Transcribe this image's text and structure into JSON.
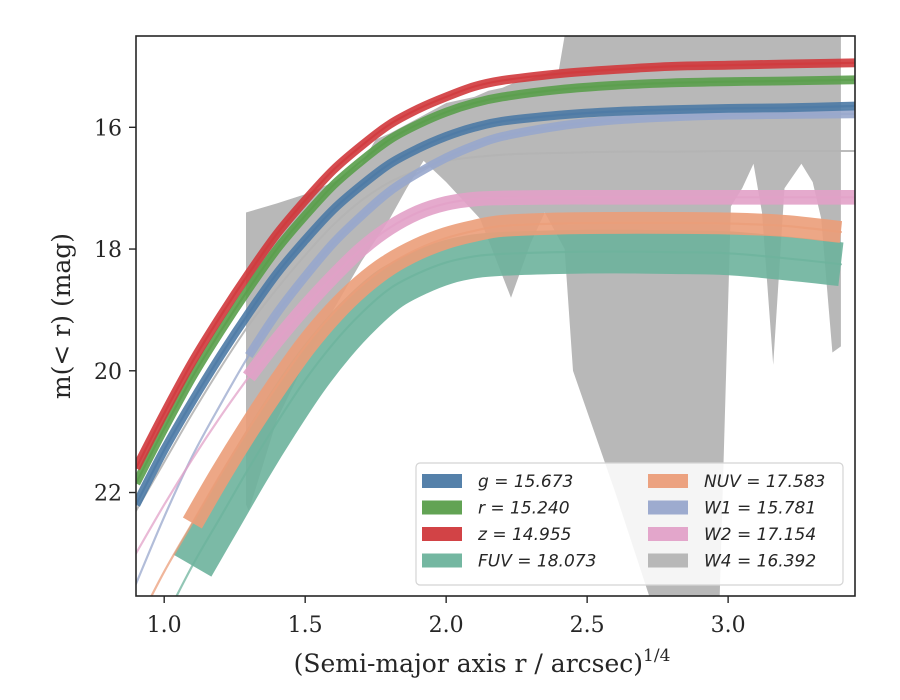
{
  "chart_data": {
    "type": "line",
    "xlabel": "(Semi-major axis r / arcsec)",
    "xlabel_exponent": "1/4",
    "ylabel": "m(< r) (mag)",
    "xlim": [
      0.9,
      3.45
    ],
    "ylim": [
      23.7,
      14.5
    ],
    "y_inverted": true,
    "x_ticks": [
      1.0,
      1.5,
      2.0,
      2.5,
      3.0
    ],
    "x_tick_labels": [
      "1.0",
      "1.5",
      "2.0",
      "2.5",
      "3.0"
    ],
    "y_ticks": [
      16,
      18,
      20,
      22
    ],
    "y_tick_labels": [
      "16",
      "18",
      "20",
      "22"
    ],
    "grid": false,
    "legend_position": "lower-right",
    "series": [
      {
        "band": "g",
        "legend": "g = 15.673",
        "color": "#4c7aa5",
        "band_width_mag": 0.06,
        "x": [
          0.9,
          1.0,
          1.1,
          1.2,
          1.3,
          1.4,
          1.5,
          1.6,
          1.7,
          1.8,
          1.9,
          2.0,
          2.1,
          2.2,
          2.4,
          2.6,
          2.8,
          3.0,
          3.2,
          3.45
        ],
        "y": [
          22.2,
          21.3,
          20.5,
          19.75,
          19.05,
          18.4,
          17.85,
          17.35,
          16.95,
          16.6,
          16.35,
          16.15,
          16.0,
          15.9,
          15.8,
          15.74,
          15.71,
          15.69,
          15.68,
          15.65
        ]
      },
      {
        "band": "r",
        "legend": "r = 15.240",
        "color": "#5a9e4b",
        "band_width_mag": 0.06,
        "x": [
          0.9,
          1.0,
          1.1,
          1.2,
          1.3,
          1.4,
          1.5,
          1.6,
          1.7,
          1.8,
          1.9,
          2.0,
          2.1,
          2.2,
          2.4,
          2.6,
          2.8,
          3.0,
          3.2,
          3.45
        ],
        "y": [
          21.85,
          20.95,
          20.1,
          19.35,
          18.65,
          18.0,
          17.45,
          16.95,
          16.55,
          16.2,
          15.95,
          15.75,
          15.6,
          15.5,
          15.38,
          15.31,
          15.27,
          15.25,
          15.24,
          15.22
        ]
      },
      {
        "band": "z",
        "legend": "z = 14.955",
        "color": "#d0393c",
        "band_width_mag": 0.06,
        "x": [
          0.9,
          1.0,
          1.1,
          1.2,
          1.3,
          1.4,
          1.5,
          1.6,
          1.7,
          1.8,
          1.9,
          2.0,
          2.1,
          2.2,
          2.4,
          2.6,
          2.8,
          3.0,
          3.2,
          3.45
        ],
        "y": [
          21.6,
          20.7,
          19.85,
          19.1,
          18.4,
          17.75,
          17.2,
          16.7,
          16.3,
          15.95,
          15.7,
          15.5,
          15.33,
          15.23,
          15.12,
          15.05,
          15.0,
          14.98,
          14.96,
          14.94
        ]
      },
      {
        "band": "FUV",
        "legend": "FUV = 18.073",
        "color": "#6db39c",
        "band_width_mag": 0.3,
        "x": [
          0.9,
          1.0,
          1.1,
          1.2,
          1.3,
          1.4,
          1.5,
          1.6,
          1.7,
          1.8,
          1.9,
          2.0,
          2.1,
          2.2,
          2.4,
          2.6,
          2.8,
          3.0,
          3.2,
          3.4
        ],
        "y": [
          25.0,
          24.1,
          23.2,
          22.4,
          21.6,
          20.85,
          20.15,
          19.55,
          19.05,
          18.65,
          18.4,
          18.22,
          18.12,
          18.08,
          18.05,
          18.04,
          18.05,
          18.07,
          18.15,
          18.25
        ]
      },
      {
        "band": "NUV",
        "legend": "NUV = 17.583",
        "color": "#eb9d79",
        "band_width_mag": 0.15,
        "x": [
          0.9,
          1.0,
          1.1,
          1.2,
          1.3,
          1.4,
          1.5,
          1.6,
          1.7,
          1.8,
          1.9,
          2.0,
          2.1,
          2.2,
          2.4,
          2.6,
          2.8,
          3.0,
          3.2,
          3.4
        ],
        "y": [
          24.2,
          23.3,
          22.5,
          21.7,
          20.95,
          20.25,
          19.6,
          19.05,
          18.6,
          18.25,
          18.0,
          17.82,
          17.7,
          17.62,
          17.58,
          17.57,
          17.57,
          17.58,
          17.62,
          17.72
        ]
      },
      {
        "band": "W1",
        "legend": "W1 = 15.781",
        "color": "#98a7cc",
        "band_width_mag": 0.06,
        "x": [
          0.9,
          1.0,
          1.1,
          1.2,
          1.3,
          1.4,
          1.5,
          1.6,
          1.7,
          1.8,
          1.9,
          2.0,
          2.1,
          2.2,
          2.4,
          2.6,
          2.8,
          3.0,
          3.2,
          3.45
        ],
        "y": [
          23.5,
          22.4,
          21.4,
          20.55,
          19.75,
          19.05,
          18.45,
          17.9,
          17.45,
          17.05,
          16.75,
          16.5,
          16.3,
          16.15,
          15.98,
          15.88,
          15.83,
          15.8,
          15.79,
          15.78
        ]
      },
      {
        "band": "W2",
        "legend": "W2 = 17.154",
        "color": "#e2a1c8",
        "band_width_mag": 0.1,
        "x": [
          0.9,
          1.0,
          1.1,
          1.2,
          1.3,
          1.4,
          1.5,
          1.6,
          1.7,
          1.8,
          1.9,
          2.0,
          2.1,
          2.2,
          2.4,
          2.6,
          2.8,
          3.0,
          3.2,
          3.45
        ],
        "y": [
          23.0,
          22.2,
          21.45,
          20.75,
          20.1,
          19.5,
          18.95,
          18.45,
          18.0,
          17.65,
          17.4,
          17.25,
          17.18,
          17.16,
          17.15,
          17.15,
          17.15,
          17.15,
          17.15,
          17.15
        ]
      },
      {
        "band": "W4",
        "legend": "W4 = 16.392",
        "color": "#b4b4b4",
        "x": [
          0.9,
          1.0,
          1.1,
          1.2,
          1.3,
          1.4,
          1.5,
          1.6,
          1.7,
          1.8,
          1.9,
          2.0,
          2.2,
          2.4,
          2.6,
          2.8,
          3.0,
          3.2,
          3.45
        ],
        "y": [
          22.3,
          21.5,
          20.7,
          19.95,
          19.25,
          18.65,
          18.1,
          17.6,
          17.2,
          16.9,
          16.7,
          16.55,
          16.45,
          16.42,
          16.4,
          16.4,
          16.39,
          16.39,
          16.39
        ],
        "upper": [
          [
            1.29,
            17.4
          ],
          [
            1.4,
            17.25
          ],
          [
            1.5,
            17.1
          ],
          [
            1.6,
            16.9
          ],
          [
            1.7,
            16.6
          ],
          [
            1.75,
            16.2
          ],
          [
            1.8,
            16.1
          ],
          [
            1.9,
            15.85
          ],
          [
            2.0,
            15.6
          ],
          [
            2.1,
            15.5
          ],
          [
            2.15,
            15.4
          ],
          [
            2.2,
            15.35
          ],
          [
            2.25,
            15.25
          ],
          [
            2.3,
            15.2
          ],
          [
            2.4,
            15.05
          ],
          [
            2.42,
            14.5
          ],
          [
            3.4,
            14.5
          ]
        ],
        "lower": [
          [
            3.4,
            19.6
          ],
          [
            3.37,
            19.7
          ],
          [
            3.33,
            17.5
          ],
          [
            3.3,
            16.9
          ],
          [
            3.26,
            16.6
          ],
          [
            3.2,
            17.0
          ],
          [
            3.16,
            19.9
          ],
          [
            3.12,
            17.4
          ],
          [
            3.09,
            16.6
          ],
          [
            3.05,
            17.0
          ],
          [
            3.01,
            17.3
          ],
          [
            2.97,
            23.7
          ],
          [
            2.72,
            23.7
          ],
          [
            2.6,
            22.0
          ],
          [
            2.45,
            20.0
          ],
          [
            2.42,
            18.0
          ],
          [
            2.35,
            17.4
          ],
          [
            2.3,
            17.9
          ],
          [
            2.23,
            18.8
          ],
          [
            2.12,
            17.5
          ],
          [
            2.0,
            16.9
          ],
          [
            1.92,
            16.55
          ],
          [
            1.86,
            17.0
          ],
          [
            1.8,
            17.5
          ],
          [
            1.7,
            18.2
          ],
          [
            1.6,
            19.0
          ],
          [
            1.5,
            19.85
          ],
          [
            1.4,
            20.8
          ],
          [
            1.3,
            22.3
          ],
          [
            1.29,
            22.2
          ]
        ]
      }
    ]
  }
}
